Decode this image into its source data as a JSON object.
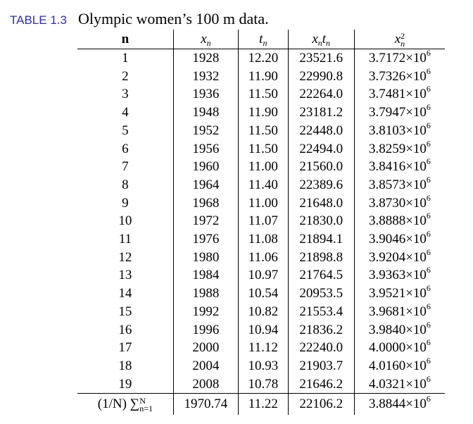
{
  "caption": {
    "label": "TABLE 1.3",
    "title": "Olympic women’s 100 m data."
  },
  "header": {
    "n": "n",
    "xn_var": "x",
    "xn_sub": "n",
    "tn_var": "t",
    "tn_sub": "n",
    "xntn_var1": "x",
    "xntn_sub1": "n",
    "xntn_var2": "t",
    "xntn_sub2": "n",
    "xn2_var": "x",
    "xn2_sub": "n",
    "xn2_sup": "2"
  },
  "rows": [
    {
      "n": "1",
      "x": "1928",
      "t": "12.20",
      "xt": "23521.6",
      "x2": "3.7172×10",
      "exp": "6"
    },
    {
      "n": "2",
      "x": "1932",
      "t": "11.90",
      "xt": "22990.8",
      "x2": "3.7326×10",
      "exp": "6"
    },
    {
      "n": "3",
      "x": "1936",
      "t": "11.50",
      "xt": "22264.0",
      "x2": "3.7481×10",
      "exp": "6"
    },
    {
      "n": "4",
      "x": "1948",
      "t": "11.90",
      "xt": "23181.2",
      "x2": "3.7947×10",
      "exp": "6"
    },
    {
      "n": "5",
      "x": "1952",
      "t": "11.50",
      "xt": "22448.0",
      "x2": "3.8103×10",
      "exp": "6"
    },
    {
      "n": "6",
      "x": "1956",
      "t": "11.50",
      "xt": "22494.0",
      "x2": "3.8259×10",
      "exp": "6"
    },
    {
      "n": "7",
      "x": "1960",
      "t": "11.00",
      "xt": "21560.0",
      "x2": "3.8416×10",
      "exp": "6"
    },
    {
      "n": "8",
      "x": "1964",
      "t": "11.40",
      "xt": "22389.6",
      "x2": "3.8573×10",
      "exp": "6"
    },
    {
      "n": "9",
      "x": "1968",
      "t": "11.00",
      "xt": "21648.0",
      "x2": "3.8730×10",
      "exp": "6"
    },
    {
      "n": "10",
      "x": "1972",
      "t": "11.07",
      "xt": "21830.0",
      "x2": "3.8888×10",
      "exp": "6"
    },
    {
      "n": "11",
      "x": "1976",
      "t": "11.08",
      "xt": "21894.1",
      "x2": "3.9046×10",
      "exp": "6"
    },
    {
      "n": "12",
      "x": "1980",
      "t": "11.06",
      "xt": "21898.8",
      "x2": "3.9204×10",
      "exp": "6"
    },
    {
      "n": "13",
      "x": "1984",
      "t": "10.97",
      "xt": "21764.5",
      "x2": "3.9363×10",
      "exp": "6"
    },
    {
      "n": "14",
      "x": "1988",
      "t": "10.54",
      "xt": "20953.5",
      "x2": "3.9521×10",
      "exp": "6"
    },
    {
      "n": "15",
      "x": "1992",
      "t": "10.82",
      "xt": "21553.4",
      "x2": "3.9681×10",
      "exp": "6"
    },
    {
      "n": "16",
      "x": "1996",
      "t": "10.94",
      "xt": "21836.2",
      "x2": "3.9840×10",
      "exp": "6"
    },
    {
      "n": "17",
      "x": "2000",
      "t": "11.12",
      "xt": "22240.0",
      "x2": "4.0000×10",
      "exp": "6"
    },
    {
      "n": "18",
      "x": "2004",
      "t": "10.93",
      "xt": "21903.7",
      "x2": "4.0160×10",
      "exp": "6"
    },
    {
      "n": "19",
      "x": "2008",
      "t": "10.78",
      "xt": "21646.2",
      "x2": "4.0321×10",
      "exp": "6"
    }
  ],
  "summary": {
    "label_prefix": "(1/N) ∑",
    "label_sup": "N",
    "label_sub": "n=1",
    "x": "1970.74",
    "t": "11.22",
    "xt": "22106.2",
    "x2": "3.8844×10",
    "exp": "6"
  }
}
